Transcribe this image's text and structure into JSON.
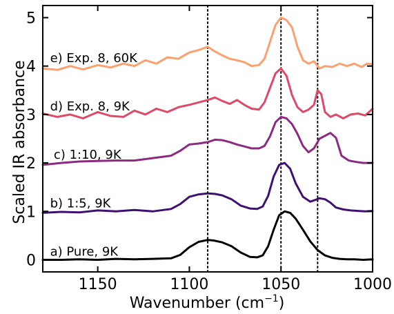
{
  "chart_data": {
    "type": "line",
    "xlabel": "Wavenumber (cm",
    "xlabel_sup": "−1",
    "xlabel_close": ")",
    "ylabel": "Scaled IR absorbance",
    "xlim": [
      1180,
      1000
    ],
    "ylim": [
      -0.25,
      5.25
    ],
    "x_inverted": true,
    "xticks": [
      1150,
      1100,
      1050,
      1000
    ],
    "yticks": [
      0,
      1,
      2,
      3,
      4,
      5
    ],
    "vlines": [
      1090,
      1050,
      1030
    ],
    "vline_style": "dotted",
    "grid": false,
    "legend": "none",
    "series": [
      {
        "name": "a) Pure, 9K",
        "color": "#000000",
        "label_at": [
          1176,
          0.17
        ],
        "x": [
          1180,
          1170,
          1160,
          1150,
          1140,
          1130,
          1120,
          1110,
          1105,
          1100,
          1095,
          1090,
          1087,
          1082,
          1077,
          1072,
          1067,
          1063,
          1060,
          1057,
          1054,
          1051,
          1048,
          1045,
          1042,
          1038,
          1034,
          1030,
          1026,
          1022,
          1018,
          1014,
          1010,
          1005,
          1000
        ],
        "y": [
          0.0,
          0.0,
          0.01,
          0.0,
          0.02,
          0.01,
          0.02,
          0.03,
          0.1,
          0.26,
          0.37,
          0.41,
          0.4,
          0.36,
          0.28,
          0.15,
          0.06,
          0.05,
          0.09,
          0.28,
          0.62,
          0.92,
          1.0,
          0.97,
          0.85,
          0.62,
          0.38,
          0.2,
          0.09,
          0.04,
          0.02,
          0.01,
          0.01,
          0.0,
          0.01
        ]
      },
      {
        "name": "b) 1:5, 9K",
        "color": "#3f0f72",
        "label_at": [
          1176,
          1.17
        ],
        "x": [
          1180,
          1170,
          1160,
          1150,
          1140,
          1130,
          1120,
          1110,
          1105,
          1100,
          1095,
          1090,
          1086,
          1082,
          1077,
          1072,
          1067,
          1063,
          1060,
          1057,
          1054,
          1051,
          1048,
          1045,
          1042,
          1038,
          1034,
          1031,
          1029,
          1026,
          1023,
          1020,
          1016,
          1012,
          1008,
          1004,
          1000
        ],
        "y": [
          0.97,
          0.99,
          0.98,
          1.02,
          1.0,
          1.03,
          1.0,
          1.05,
          1.15,
          1.3,
          1.35,
          1.37,
          1.36,
          1.33,
          1.25,
          1.12,
          1.06,
          1.05,
          1.1,
          1.32,
          1.72,
          1.96,
          2.0,
          1.88,
          1.58,
          1.3,
          1.2,
          1.24,
          1.27,
          1.25,
          1.18,
          1.08,
          1.04,
          1.02,
          1.01,
          1.0,
          1.01
        ]
      },
      {
        "name": "c) 1:10, 9K",
        "color": "#8c2981",
        "label_at": [
          1174,
          2.17
        ],
        "x": [
          1180,
          1170,
          1160,
          1150,
          1140,
          1130,
          1120,
          1110,
          1105,
          1100,
          1095,
          1090,
          1086,
          1082,
          1078,
          1074,
          1070,
          1066,
          1062,
          1059,
          1056,
          1053,
          1050,
          1047,
          1044,
          1041,
          1038,
          1035,
          1032,
          1029,
          1026,
          1023,
          1020,
          1017,
          1013,
          1009,
          1005,
          1000
        ],
        "y": [
          1.96,
          2.0,
          2.03,
          2.04,
          2.05,
          2.05,
          2.1,
          2.15,
          2.25,
          2.38,
          2.4,
          2.43,
          2.48,
          2.47,
          2.43,
          2.38,
          2.34,
          2.3,
          2.3,
          2.35,
          2.55,
          2.84,
          2.95,
          2.92,
          2.8,
          2.6,
          2.35,
          2.22,
          2.3,
          2.5,
          2.56,
          2.62,
          2.52,
          2.15,
          2.05,
          2.02,
          2.0,
          2.0
        ]
      },
      {
        "name": "d) Exp. 8, 9K",
        "color": "#de4968",
        "label_at": [
          1176,
          3.17
        ],
        "x": [
          1180,
          1172,
          1165,
          1158,
          1150,
          1143,
          1136,
          1130,
          1124,
          1118,
          1112,
          1106,
          1100,
          1095,
          1090,
          1086,
          1082,
          1078,
          1074,
          1070,
          1066,
          1062,
          1059,
          1056,
          1053,
          1050,
          1047,
          1044,
          1041,
          1038,
          1035,
          1032,
          1030,
          1028,
          1026,
          1023,
          1020,
          1016,
          1012,
          1008,
          1004,
          1000
        ],
        "y": [
          3.02,
          2.95,
          3.0,
          2.92,
          3.05,
          2.97,
          2.95,
          3.08,
          3.0,
          3.12,
          3.05,
          3.15,
          3.2,
          3.25,
          3.3,
          3.35,
          3.28,
          3.22,
          3.3,
          3.2,
          3.12,
          3.1,
          3.25,
          3.55,
          3.85,
          3.95,
          3.8,
          3.4,
          3.15,
          3.05,
          3.1,
          3.2,
          3.5,
          3.42,
          3.05,
          2.95,
          3.0,
          2.92,
          3.0,
          3.02,
          2.98,
          3.12
        ]
      },
      {
        "name": "e) Exp. 8, 60K",
        "color": "#fca06e",
        "label_at": [
          1176,
          4.17
        ],
        "x": [
          1180,
          1172,
          1165,
          1158,
          1150,
          1143,
          1136,
          1130,
          1124,
          1118,
          1112,
          1106,
          1100,
          1095,
          1090,
          1086,
          1082,
          1078,
          1074,
          1070,
          1066,
          1062,
          1059,
          1056,
          1053,
          1050,
          1047,
          1044,
          1041,
          1038,
          1035,
          1032,
          1029,
          1026,
          1022,
          1018,
          1014,
          1010,
          1006,
          1003,
          1000
        ],
        "y": [
          3.95,
          3.92,
          4.0,
          3.93,
          4.02,
          3.97,
          4.05,
          4.0,
          4.12,
          4.05,
          4.18,
          4.15,
          4.28,
          4.33,
          4.4,
          4.3,
          4.22,
          4.15,
          4.12,
          4.08,
          4.0,
          4.02,
          4.15,
          4.5,
          4.85,
          5.0,
          4.95,
          4.8,
          4.4,
          4.12,
          4.05,
          4.1,
          3.95,
          4.0,
          3.98,
          4.05,
          4.0,
          4.05,
          3.98,
          4.05,
          4.04
        ]
      }
    ]
  }
}
